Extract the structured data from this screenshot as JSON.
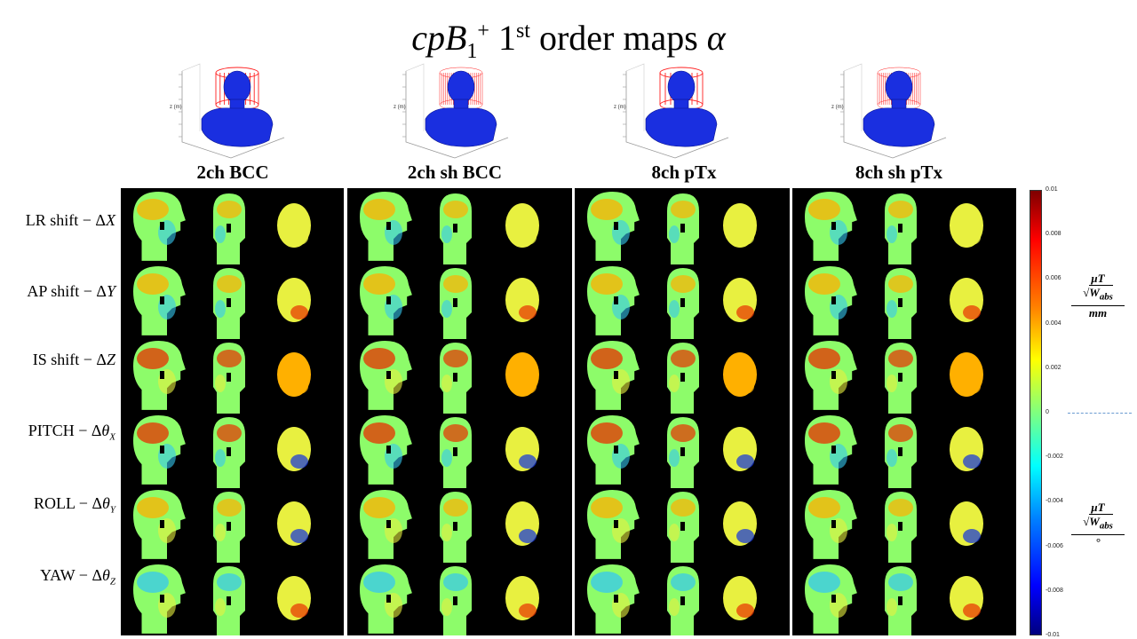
{
  "title": {
    "text": "cpB",
    "sub": "1",
    "sup": "+",
    "mid": " 1",
    "mid_sup": "st",
    "tail": " order maps ",
    "symbol": "α"
  },
  "columns": [
    {
      "label": "2ch BCC",
      "cage": "bcc"
    },
    {
      "label": "2ch sh BCC",
      "cage": "bcc-dense"
    },
    {
      "label": "8ch pTx",
      "cage": "ptx"
    },
    {
      "label": "8ch sh pTx",
      "cage": "ptx-dense"
    }
  ],
  "rows": [
    {
      "label": "LR shift − Δ",
      "sym": "X",
      "sub": ""
    },
    {
      "label": "AP shift −  Δ",
      "sym": "Y",
      "sub": ""
    },
    {
      "label": "IS shift − Δ",
      "sym": "Z",
      "sub": ""
    },
    {
      "label": "PITCH − Δ",
      "sym": "θ",
      "sub": "X"
    },
    {
      "label": "ROLL − Δ",
      "sym": "θ",
      "sub": "Y"
    },
    {
      "label": "YAW − Δ",
      "sym": "θ",
      "sub": "Z"
    }
  ],
  "colorbar": {
    "ticks": [
      "0.01",
      "0.008",
      "0.006",
      "0.004",
      "0.002",
      "0",
      "-0.002",
      "-0.004",
      "-0.006",
      "-0.008",
      "-0.01"
    ],
    "colormap": "jet"
  },
  "units": {
    "upper": {
      "num": "μT",
      "root": "W",
      "root_sub": "abs",
      "den": "mm"
    },
    "lower": {
      "num": "μT",
      "root": "W",
      "root_sub": "abs",
      "den": "°"
    }
  },
  "map_colors": {
    "base": "#8dfc6a",
    "head_cool": "#35c8f0",
    "warm": "#ffb000",
    "hot": "#e83000",
    "cold": "#1030e0",
    "yellow": "#e8f040"
  }
}
